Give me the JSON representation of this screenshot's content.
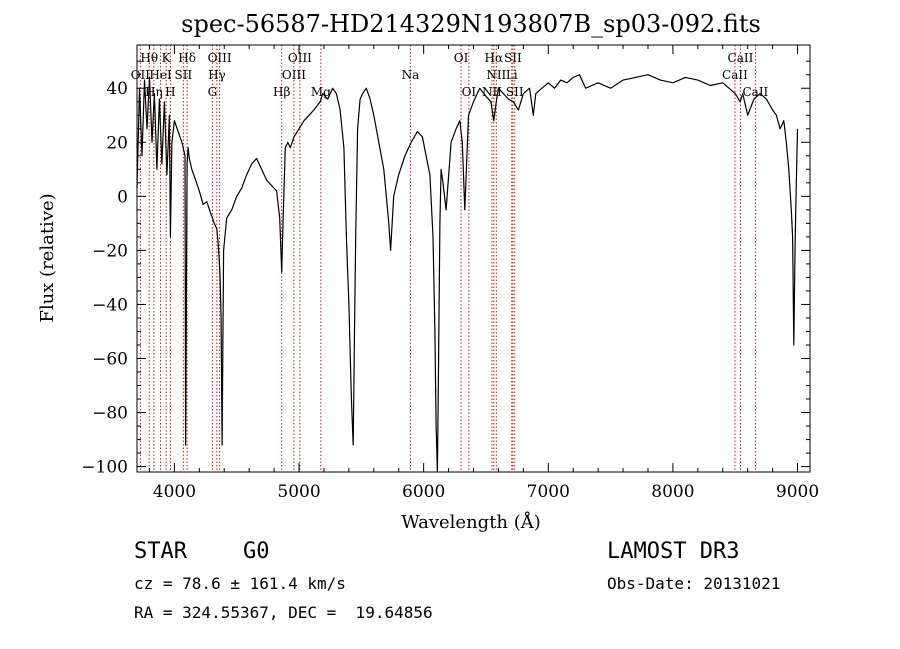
{
  "chart_data": {
    "type": "line",
    "title": "spec-56587-HD214329N193807B_sp03-092.fits",
    "xlabel": "Wavelength (Å)",
    "ylabel": "Flux (relative)",
    "xlim": [
      3700,
      9100
    ],
    "ylim": [
      -102,
      56
    ],
    "xticks": [
      4000,
      5000,
      6000,
      7000,
      8000,
      9000
    ],
    "yticks": [
      -100,
      -80,
      -60,
      -40,
      -20,
      0,
      20,
      40
    ],
    "xtick_labels": [
      "4000",
      "5000",
      "6000",
      "7000",
      "8000",
      "9000"
    ],
    "ytick_labels": [
      "−100",
      "−80",
      "−60",
      "−40",
      "−20",
      "0",
      "20",
      "40"
    ],
    "grid": false,
    "line_color": "#000000",
    "marker_color": "#b22222",
    "series": [
      {
        "x": [
          3700,
          3720,
          3740,
          3760,
          3780,
          3800,
          3820,
          3840,
          3860,
          3880,
          3900,
          3920,
          3940,
          3960,
          3968,
          3980,
          4000,
          4030,
          4060,
          4085,
          4090,
          4102,
          4110,
          4120,
          4140,
          4170,
          4200,
          4230,
          4260,
          4290,
          4320,
          4340,
          4352,
          4365,
          4375,
          4383,
          4395,
          4420,
          4460,
          4500,
          4540,
          4580,
          4620,
          4660,
          4700,
          4740,
          4780,
          4820,
          4845,
          4861,
          4875,
          4890,
          4910,
          4930,
          4960,
          5000,
          5040,
          5080,
          5120,
          5170,
          5190,
          5230,
          5270,
          5300,
          5330,
          5360,
          5380,
          5400,
          5420,
          5435,
          5445,
          5455,
          5470,
          5490,
          5510,
          5540,
          5570,
          5600,
          5640,
          5680,
          5700,
          5720,
          5735,
          5760,
          5800,
          5850,
          5900,
          5950,
          5990,
          6020,
          6050,
          6075,
          6090,
          6100,
          6110,
          6120,
          6130,
          6140,
          6155,
          6180,
          6220,
          6260,
          6290,
          6310,
          6330,
          6360,
          6400,
          6450,
          6500,
          6540,
          6563,
          6580,
          6600,
          6640,
          6680,
          6720,
          6760,
          6800,
          6850,
          6880,
          6900,
          6950,
          7000,
          7050,
          7100,
          7150,
          7200,
          7250,
          7300,
          7400,
          7500,
          7600,
          7700,
          7800,
          7900,
          8000,
          8100,
          8200,
          8300,
          8400,
          8450,
          8500,
          8540,
          8560,
          8600,
          8650,
          8700,
          8750,
          8800,
          8830,
          8860,
          8890,
          8910,
          8930,
          8950,
          8960,
          8970,
          8980,
          8990,
          9000
        ],
        "y": [
          3,
          40,
          15,
          43,
          25,
          44,
          20,
          38,
          10,
          36,
          12,
          35,
          8,
          30,
          -15,
          20,
          28,
          24,
          20,
          15,
          -92,
          12,
          18,
          14,
          10,
          6,
          2,
          -3,
          -2,
          -6,
          -10,
          -12,
          -18,
          -28,
          -45,
          -92,
          -20,
          -8,
          -5,
          0,
          3,
          8,
          12,
          14,
          10,
          6,
          4,
          2,
          -8,
          -28,
          -5,
          18,
          20,
          18,
          22,
          25,
          28,
          30,
          32,
          35,
          38,
          36,
          40,
          38,
          32,
          18,
          -15,
          -40,
          -75,
          -92,
          -50,
          -15,
          25,
          36,
          38,
          40,
          36,
          30,
          20,
          10,
          0,
          -10,
          -20,
          0,
          8,
          15,
          20,
          24,
          22,
          15,
          8,
          -15,
          -50,
          -85,
          -102,
          -60,
          -10,
          10,
          5,
          -5,
          20,
          25,
          28,
          20,
          -5,
          30,
          35,
          40,
          37,
          35,
          28,
          34,
          40,
          38,
          36,
          35,
          32,
          38,
          40,
          30,
          38,
          40,
          42,
          40,
          43,
          42,
          44,
          45,
          40,
          42,
          40,
          43,
          44,
          45,
          43,
          42,
          44,
          43,
          41,
          42,
          40,
          38,
          35,
          38,
          30,
          36,
          38,
          36,
          32,
          30,
          25,
          28,
          20,
          10,
          -5,
          -15,
          -55,
          -20,
          5,
          25
        ]
      }
    ],
    "lines": [
      {
        "label": "OII",
        "x": 3727,
        "row": 1
      },
      {
        "label": "Hθ",
        "x": 3798,
        "row": 0
      },
      {
        "label": "Hη",
        "x": 3835,
        "row": 2
      },
      {
        "label": "HeI",
        "x": 3889,
        "row": 1
      },
      {
        "label": "K",
        "x": 3934,
        "row": 0
      },
      {
        "label": "H",
        "x": 3968,
        "row": 2
      },
      {
        "label": "SII",
        "x": 4072,
        "row": 1
      },
      {
        "label": "Hδ",
        "x": 4102,
        "row": 0
      },
      {
        "label": "G",
        "x": 4305,
        "row": 2
      },
      {
        "label": "Hγ",
        "x": 4341,
        "row": 1
      },
      {
        "label": "OIII",
        "x": 4363,
        "row": 0
      },
      {
        "label": "Hβ",
        "x": 4861,
        "row": 2
      },
      {
        "label": "OIII",
        "x": 4959,
        "row": 1
      },
      {
        "label": "OIII",
        "x": 5007,
        "row": 0
      },
      {
        "label": "Mg",
        "x": 5175,
        "row": 2
      },
      {
        "label": "Na",
        "x": 5894,
        "row": 1
      },
      {
        "label": "OI",
        "x": 6300,
        "row": 0
      },
      {
        "label": "OI",
        "x": 6363,
        "row": 2
      },
      {
        "label": "NII",
        "x": 6548,
        "row": 2
      },
      {
        "label": "Hα",
        "x": 6563,
        "row": 0
      },
      {
        "label": "NII",
        "x": 6583,
        "row": 1
      },
      {
        "label": "Li",
        "x": 6707,
        "row": 1
      },
      {
        "label": "SII",
        "x": 6716,
        "row": 0
      },
      {
        "label": "SII",
        "x": 6731,
        "row": 2
      },
      {
        "label": "CaII",
        "x": 8498,
        "row": 1
      },
      {
        "label": "CaII",
        "x": 8542,
        "row": 0
      },
      {
        "label": "CaII",
        "x": 8662,
        "row": 2
      }
    ]
  },
  "info": {
    "class_type": "STAR",
    "subclass": "G0",
    "survey": "LAMOST DR3",
    "redshift": "cz = 78.6 ± 161.4 km/s",
    "obs_date": "Obs-Date: 20131021",
    "coords": "RA = 324.55367, DEC =  19.64856"
  }
}
